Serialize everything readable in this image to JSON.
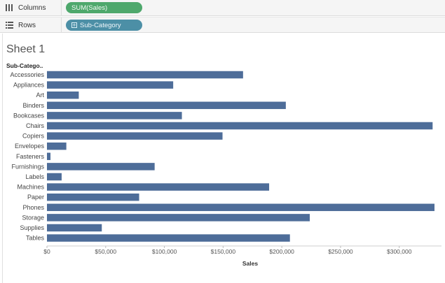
{
  "shelves": {
    "columns": {
      "label": "Columns",
      "pill": "SUM(Sales)",
      "pill_color": "#4ea86c"
    },
    "rows": {
      "label": "Rows",
      "pill": "Sub-Category",
      "pill_color": "#4c8fa6"
    }
  },
  "sheet": {
    "title": "Sheet 1",
    "row_header": "Sub-Catego.."
  },
  "chart_data": {
    "type": "bar",
    "orientation": "horizontal",
    "categories": [
      "Accessories",
      "Appliances",
      "Art",
      "Binders",
      "Bookcases",
      "Chairs",
      "Copiers",
      "Envelopes",
      "Fasteners",
      "Furnishings",
      "Labels",
      "Machines",
      "Paper",
      "Phones",
      "Storage",
      "Supplies",
      "Tables"
    ],
    "values": [
      167000,
      107500,
      27100,
      203400,
      114900,
      328400,
      149500,
      16500,
      3000,
      91700,
      12500,
      189200,
      78500,
      330000,
      223800,
      46700,
      206900
    ],
    "xlabel": "Sales",
    "xlim": [
      0,
      330000
    ],
    "xticks": [
      "$0",
      "$50,000",
      "$100,000",
      "$150,000",
      "$200,000",
      "$250,000",
      "$300,000"
    ],
    "xtick_values": [
      0,
      50000,
      100000,
      150000,
      200000,
      250000,
      300000
    ],
    "bar_color": "#4e6d99",
    "grid": false
  }
}
